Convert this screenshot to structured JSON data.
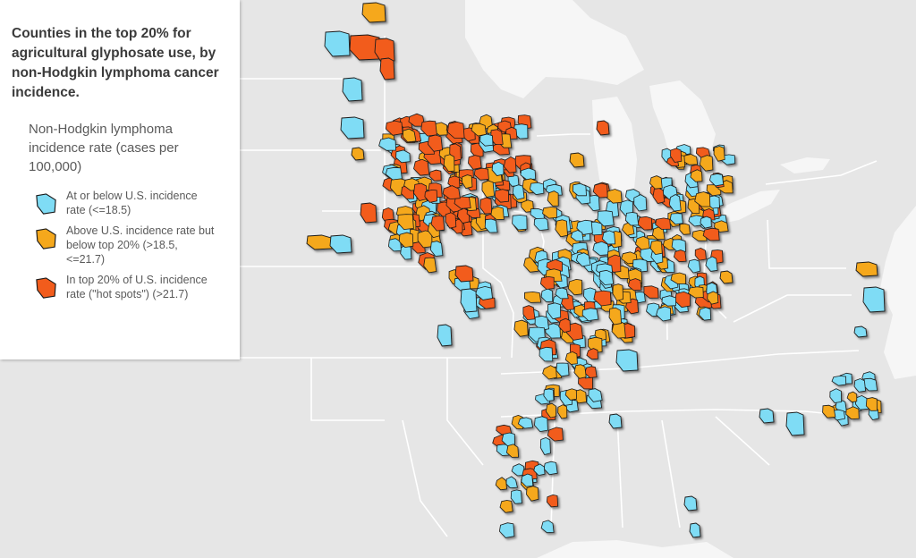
{
  "legend": {
    "title": "Counties in the top 20% for agricultural glyphosate use, by non-Hodgkin lymphoma cancer incidence.",
    "subtitle": "Non-Hodgkin lymphoma incidence rate (cases per 100,000)",
    "items": [
      {
        "label": "At or below U.S. incidence rate (<=18.5)",
        "color": "#7fdcf5"
      },
      {
        "label": "Above U.S. incidence rate but below top 20% (>18.5, <=21.7)",
        "color": "#f5a81c"
      },
      {
        "label": "In top 20% of U.S. incidence rate (\"hot spots\") (>21.7)",
        "color": "#f25c1c"
      }
    ]
  },
  "map": {
    "land_color": "#e6e6e6",
    "water_color": "#f6f6f6",
    "border_color": "#ffffff",
    "county_outline_color": "#1a1a1a"
  }
}
